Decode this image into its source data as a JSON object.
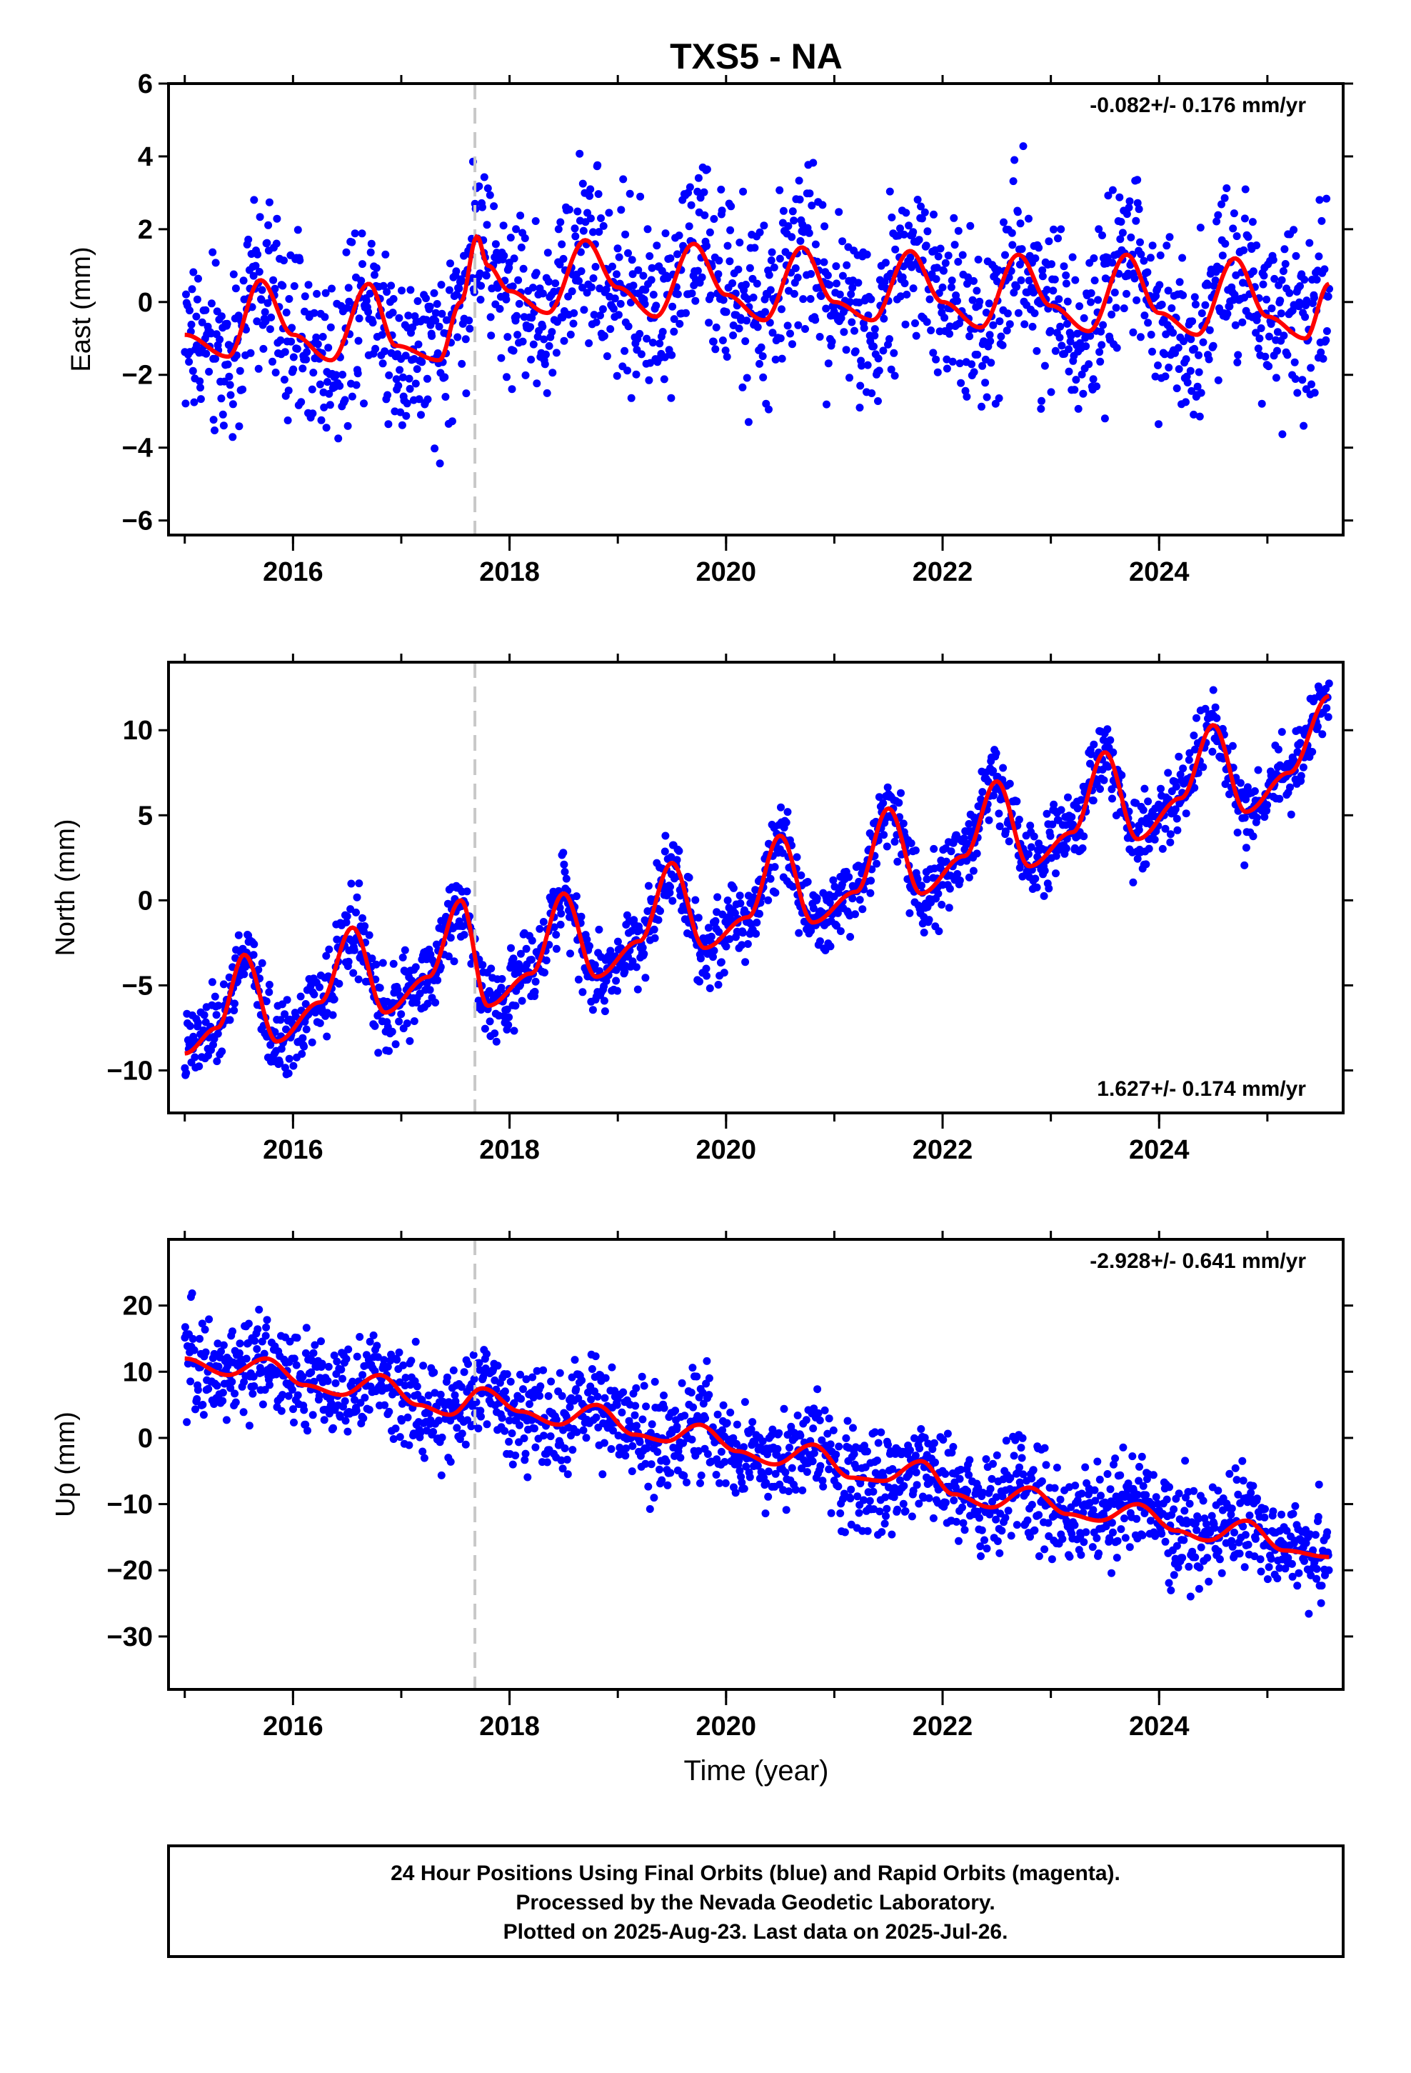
{
  "title": "TXS5 - NA",
  "colors": {
    "final_orbits": "#0000ff",
    "model_fit": "#ff0000",
    "event_line": "#c8c8c8",
    "frame": "#000000"
  },
  "chart_data": [
    {
      "type": "scatter",
      "panel": "east",
      "ylabel": "East (mm)",
      "xlabel": "",
      "xlim": [
        2014.85,
        2025.7
      ],
      "ylim": [
        -6.4,
        6.0
      ],
      "yticks": [
        -6,
        -4,
        -2,
        0,
        2,
        4,
        6
      ],
      "xticks": [
        2016,
        2018,
        2020,
        2022,
        2024
      ],
      "rate_label": "-0.082+/- 0.176 mm/yr",
      "rate_position": "top-right",
      "event_line_x": 2017.68,
      "grid": false,
      "fit_series": {
        "name": "",
        "x": [
          2015.0,
          2015.4,
          2015.7,
          2016.0,
          2016.35,
          2016.7,
          2016.95,
          2017.35,
          2017.55,
          2017.7,
          2017.8,
          2018.0,
          2018.35,
          2018.7,
          2019.0,
          2019.35,
          2019.7,
          2020.0,
          2020.35,
          2020.7,
          2021.0,
          2021.35,
          2021.7,
          2022.0,
          2022.35,
          2022.7,
          2023.0,
          2023.35,
          2023.7,
          2024.0,
          2024.35,
          2024.7,
          2025.0,
          2025.35,
          2025.57
        ],
        "y": [
          -0.9,
          -1.5,
          0.6,
          -0.9,
          -1.6,
          0.5,
          -1.2,
          -1.6,
          0.0,
          1.8,
          1.0,
          0.3,
          -0.3,
          1.7,
          0.4,
          -0.4,
          1.6,
          0.2,
          -0.5,
          1.5,
          0.0,
          -0.5,
          1.4,
          0.0,
          -0.7,
          1.3,
          -0.1,
          -0.8,
          1.3,
          -0.3,
          -0.9,
          1.2,
          -0.4,
          -1.0,
          0.5
        ]
      },
      "scatter_model": {
        "x_start": 2015.0,
        "x_end": 2025.57,
        "spread_mm": 1.2,
        "display_points": 1700
      }
    },
    {
      "type": "scatter",
      "panel": "north",
      "ylabel": "North (mm)",
      "xlabel": "",
      "xlim": [
        2014.85,
        2025.7
      ],
      "ylim": [
        -12.5,
        14.0
      ],
      "yticks": [
        -10,
        -5,
        0,
        5,
        10
      ],
      "xticks": [
        2016,
        2018,
        2020,
        2022,
        2024
      ],
      "rate_label": "1.627+/- 0.174 mm/yr",
      "rate_position": "bottom-right",
      "event_line_x": 2017.68,
      "grid": false,
      "fit_series": {
        "name": "",
        "x": [
          2015.0,
          2015.3,
          2015.55,
          2015.85,
          2016.25,
          2016.55,
          2016.85,
          2017.25,
          2017.55,
          2017.8,
          2018.2,
          2018.5,
          2018.8,
          2019.2,
          2019.5,
          2019.8,
          2020.2,
          2020.5,
          2020.8,
          2021.2,
          2021.5,
          2021.8,
          2022.2,
          2022.5,
          2022.8,
          2023.2,
          2023.5,
          2023.8,
          2024.2,
          2024.5,
          2024.8,
          2025.2,
          2025.57
        ],
        "y": [
          -9.0,
          -7.5,
          -3.2,
          -8.3,
          -6.0,
          -1.6,
          -6.6,
          -4.5,
          0.0,
          -6.2,
          -4.3,
          0.4,
          -4.5,
          -2.4,
          2.2,
          -2.8,
          -1.0,
          3.8,
          -1.3,
          0.5,
          5.4,
          0.4,
          2.6,
          7.0,
          2.0,
          4.0,
          8.7,
          3.6,
          6.0,
          10.3,
          5.2,
          7.5,
          12.0
        ]
      },
      "scatter_model": {
        "x_start": 2015.0,
        "x_end": 2025.57,
        "spread_mm": 1.1,
        "display_points": 1700
      }
    },
    {
      "type": "scatter",
      "panel": "up",
      "ylabel": "Up (mm)",
      "xlabel": "Time (year)",
      "xlim": [
        2014.85,
        2025.7
      ],
      "ylim": [
        -38.0,
        30.0
      ],
      "yticks": [
        -30,
        -20,
        -10,
        0,
        10,
        20
      ],
      "xticks": [
        2016,
        2018,
        2020,
        2022,
        2024
      ],
      "rate_label": "-2.928+/- 0.641 mm/yr",
      "rate_position": "top-right",
      "event_line_x": 2017.68,
      "grid": false,
      "fit_series": {
        "name": "",
        "x": [
          2015.0,
          2015.4,
          2015.75,
          2016.1,
          2016.45,
          2016.8,
          2017.15,
          2017.45,
          2017.75,
          2018.1,
          2018.45,
          2018.8,
          2019.15,
          2019.45,
          2019.75,
          2020.1,
          2020.45,
          2020.8,
          2021.15,
          2021.45,
          2021.8,
          2022.1,
          2022.45,
          2022.8,
          2023.15,
          2023.45,
          2023.8,
          2024.15,
          2024.45,
          2024.8,
          2025.15,
          2025.57
        ],
        "y": [
          12.0,
          9.5,
          12.0,
          8.0,
          6.5,
          9.5,
          5.0,
          3.5,
          7.5,
          4.0,
          2.0,
          5.0,
          0.5,
          -0.5,
          2.0,
          -2.0,
          -4.0,
          -1.0,
          -6.0,
          -6.5,
          -3.5,
          -8.5,
          -10.5,
          -7.5,
          -11.5,
          -12.5,
          -10.0,
          -14.0,
          -15.5,
          -12.5,
          -17.0,
          -18.0
        ]
      },
      "scatter_model": {
        "x_start": 2015.0,
        "x_end": 2025.57,
        "spread_mm": 3.8,
        "display_points": 1700
      }
    }
  ],
  "footer": {
    "line1": "24 Hour Positions Using Final Orbits (blue) and Rapid Orbits (magenta).",
    "line2": "Processed by the Nevada Geodetic Laboratory.",
    "line3": "Plotted on 2025-Aug-23. Last data on 2025-Jul-26."
  }
}
